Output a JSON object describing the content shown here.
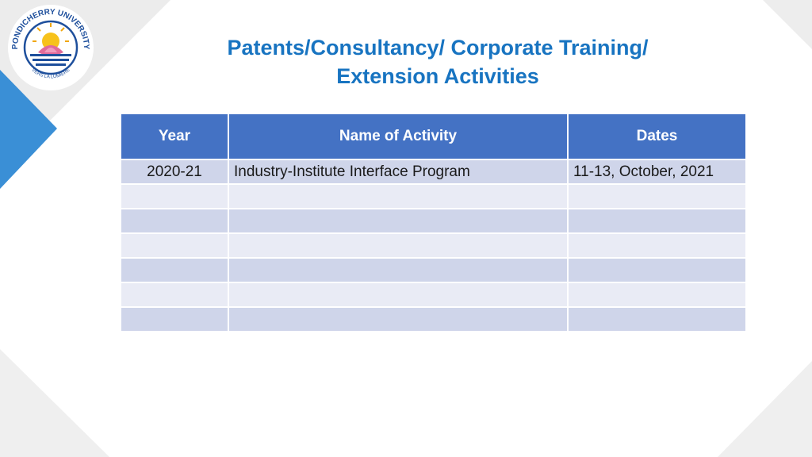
{
  "title": {
    "line1": "Patents/Consultancy/ Corporate Training/",
    "line2": "Extension Activities"
  },
  "logo": {
    "ring_text_top": "PONDICHERRY UNIVERSITY",
    "ring_text_bottom": "VERS LA LUMIERE",
    "icon": "lotus-sun-emblem-icon"
  },
  "table": {
    "headers": [
      "Year",
      "Name of Activity",
      "Dates"
    ],
    "rows": [
      [
        "2020-21",
        "Industry-Institute Interface Program",
        "11-13, October, 2021"
      ],
      [
        "",
        "",
        ""
      ],
      [
        "",
        "",
        ""
      ],
      [
        "",
        "",
        ""
      ],
      [
        "",
        "",
        ""
      ],
      [
        "",
        "",
        ""
      ],
      [
        "",
        "",
        ""
      ]
    ]
  },
  "colors": {
    "title": "#1874c1",
    "header_bg": "#4472c4",
    "row_dark": "#cfd5ea",
    "row_light": "#e9ebf5",
    "accent_blue": "#3a8fd6"
  }
}
